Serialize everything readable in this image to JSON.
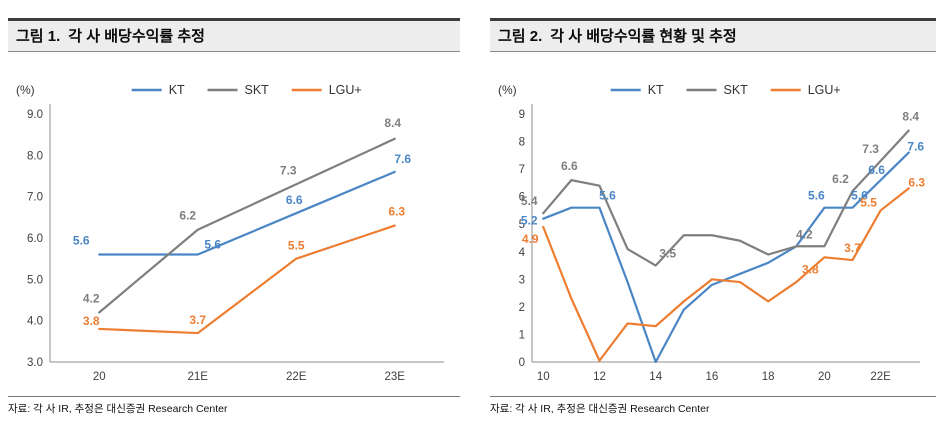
{
  "chart_data": [
    {
      "type": "line",
      "fig_label": "그림 1.",
      "title": "각 사 배당수익률 추정",
      "unit_label": "(%)",
      "source": "자료: 각 사 IR, 추정은 대신증권 Research Center",
      "categories": [
        "20",
        "21E",
        "22E",
        "23E"
      ],
      "ylim": [
        3.0,
        9.0
      ],
      "ytick_step": 1,
      "ytick_decimals": 1,
      "grid": false,
      "legend_position": "top-center",
      "series": [
        {
          "name": "KT",
          "color": "#4A86C6",
          "values": [
            5.6,
            5.6,
            6.6,
            7.6
          ],
          "labels": [
            {
              "i": 0,
              "dx": -18,
              "dy": -10
            },
            {
              "i": 1,
              "dx": 15,
              "dy": -6
            },
            {
              "i": 2,
              "dx": -2,
              "dy": -9
            },
            {
              "i": 3,
              "dx": 8,
              "dy": -9
            }
          ]
        },
        {
          "name": "SKT",
          "color": "#7F7F7F",
          "values": [
            4.2,
            6.2,
            7.3,
            8.4
          ],
          "labels": [
            {
              "i": 0,
              "dx": -8,
              "dy": -10
            },
            {
              "i": 1,
              "dx": -10,
              "dy": -10
            },
            {
              "i": 2,
              "dx": -8,
              "dy": -10
            },
            {
              "i": 3,
              "dx": -2,
              "dy": -12
            }
          ]
        },
        {
          "name": "LGU+",
          "color": "#ED7D31",
          "values": [
            3.8,
            3.7,
            5.5,
            6.3
          ],
          "labels": [
            {
              "i": 0,
              "dx": -8,
              "dy": -4
            },
            {
              "i": 1,
              "dx": 0,
              "dy": -9
            },
            {
              "i": 2,
              "dx": 0,
              "dy": -9
            },
            {
              "i": 3,
              "dx": 2,
              "dy": -10
            }
          ]
        }
      ]
    },
    {
      "type": "line",
      "fig_label": "그림 2.",
      "title": "각 사 배당수익률 현황 및 추정",
      "unit_label": "(%)",
      "source": "자료: 각 사 IR, 추정은 대신증권 Research Center",
      "x": [
        10,
        11,
        12,
        13,
        14,
        15,
        16,
        17,
        18,
        19,
        20,
        21,
        22,
        23
      ],
      "xticks": [
        {
          "v": 10,
          "label": "10"
        },
        {
          "v": 12,
          "label": "12"
        },
        {
          "v": 14,
          "label": "14"
        },
        {
          "v": 16,
          "label": "16"
        },
        {
          "v": 18,
          "label": "18"
        },
        {
          "v": 20,
          "label": "20"
        },
        {
          "v": 22,
          "label": "22E"
        }
      ],
      "ylim": [
        0,
        9
      ],
      "ytick_step": 1,
      "ytick_decimals": 0,
      "grid": false,
      "legend_position": "top-center",
      "series": [
        {
          "name": "KT",
          "color": "#4A86C6",
          "values": [
            5.2,
            5.6,
            5.6,
            2.9,
            0.0,
            1.9,
            2.8,
            3.2,
            3.6,
            4.2,
            5.6,
            5.6,
            6.6,
            7.6
          ],
          "labels": [
            {
              "i": 0,
              "dx": -14,
              "dy": 6
            },
            {
              "i": 2,
              "dx": 8,
              "dy": -8
            },
            {
              "i": 10,
              "dx": -8,
              "dy": -8
            },
            {
              "i": 11,
              "dx": 7,
              "dy": -8
            },
            {
              "i": 12,
              "dx": -4,
              "dy": -6
            },
            {
              "i": 13,
              "dx": 7,
              "dy": -2
            }
          ]
        },
        {
          "name": "SKT",
          "color": "#7F7F7F",
          "values": [
            5.4,
            6.6,
            6.4,
            4.1,
            3.5,
            4.6,
            4.6,
            4.4,
            3.9,
            4.2,
            4.2,
            6.2,
            7.3,
            8.4
          ],
          "labels": [
            {
              "i": 0,
              "dx": -14,
              "dy": -8
            },
            {
              "i": 1,
              "dx": -2,
              "dy": -10
            },
            {
              "i": 4,
              "dx": 12,
              "dy": -8
            },
            {
              "i": 9,
              "dx": 8,
              "dy": -8
            },
            {
              "i": 11,
              "dx": -12,
              "dy": -8
            },
            {
              "i": 12,
              "dx": -10,
              "dy": -8
            },
            {
              "i": 13,
              "dx": 2,
              "dy": -10
            }
          ]
        },
        {
          "name": "LGU+",
          "color": "#ED7D31",
          "values": [
            4.9,
            2.3,
            0.05,
            1.4,
            1.3,
            2.2,
            3.0,
            2.9,
            2.2,
            2.9,
            3.8,
            3.7,
            5.5,
            6.3
          ],
          "labels": [
            {
              "i": 0,
              "dx": -13,
              "dy": 16
            },
            {
              "i": 10,
              "dx": -14,
              "dy": 16
            },
            {
              "i": 11,
              "dx": 0,
              "dy": -8
            },
            {
              "i": 12,
              "dx": -12,
              "dy": -4
            },
            {
              "i": 13,
              "dx": 8,
              "dy": -2
            }
          ]
        }
      ]
    }
  ]
}
